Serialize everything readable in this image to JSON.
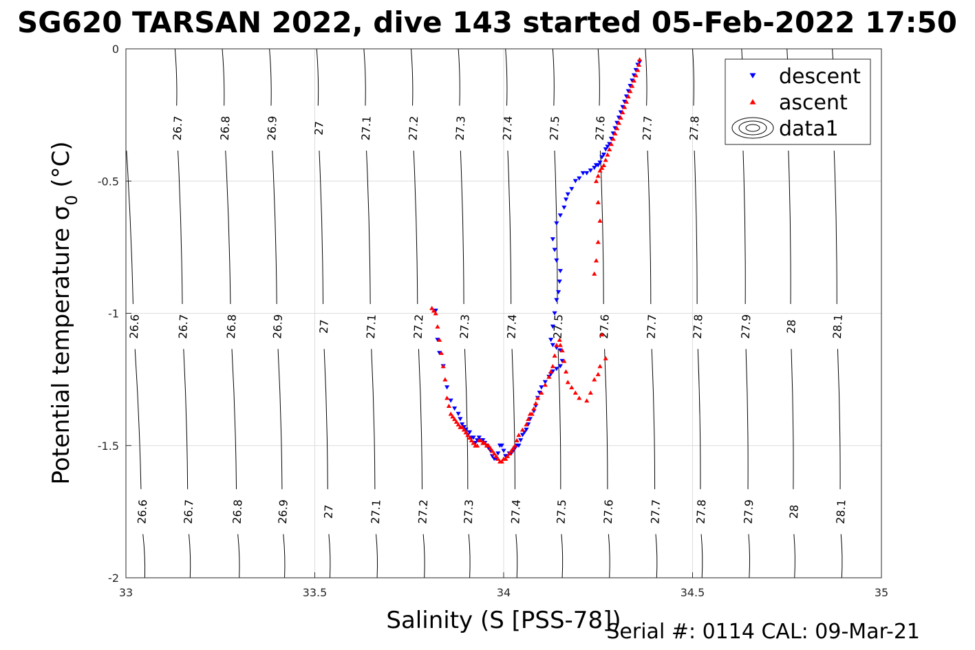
{
  "chart_data": {
    "type": "scatter",
    "title": "SG620 TARSAN 2022, dive 143 started 05-Feb-2022 17:50",
    "xlabel": "Salinity (S [PSS-78])",
    "ylabel": "Potential temperature σ",
    "ylabel_sub": "0",
    "ylabel_unit": " (°C)",
    "footer": "Serial #: 0114  CAL: 09-Mar-21",
    "xlim": [
      33,
      35
    ],
    "ylim": [
      -2,
      0
    ],
    "xticks": [
      33,
      33.5,
      34,
      34.5,
      35
    ],
    "xtick_labels": [
      "33",
      "33.5",
      "34",
      "34.5",
      "35"
    ],
    "yticks": [
      0,
      -0.5,
      -1,
      -1.5,
      -2
    ],
    "ytick_labels": [
      "0",
      "-0.5",
      "-1",
      "-1.5",
      "-2"
    ],
    "grid": true,
    "legend_position": "top-right",
    "legend": [
      {
        "label": "descent",
        "marker": "triangle-down",
        "color": "#0000ff"
      },
      {
        "label": "ascent",
        "marker": "triangle-up",
        "color": "#ff0000"
      },
      {
        "label": "data1",
        "marker": "contour",
        "color": "#000000"
      }
    ],
    "contours": {
      "levels": [
        26.6,
        26.7,
        26.8,
        26.9,
        27.0,
        27.1,
        27.2,
        27.3,
        27.4,
        27.5,
        27.6,
        27.7,
        27.8,
        27.9,
        28.0,
        28.1
      ],
      "labels": [
        "26.6",
        "26.7",
        "26.8",
        "26.9",
        "27",
        "27.1",
        "27.2",
        "27.3",
        "27.4",
        "27.5",
        "27.6",
        "27.7",
        "27.8",
        "27.9",
        "28",
        "28.1"
      ],
      "x_at_top": [
        32.99,
        33.13,
        33.255,
        33.38,
        33.505,
        33.63,
        33.755,
        33.88,
        34.005,
        34.13,
        34.25,
        34.375,
        34.5,
        34.63,
        34.75,
        34.87
      ],
      "x_at_bottom": [
        33.05,
        33.17,
        33.3,
        33.42,
        33.54,
        33.665,
        33.79,
        33.91,
        34.035,
        34.155,
        34.28,
        34.405,
        34.525,
        34.65,
        34.77,
        34.895
      ],
      "label_rows_temp": [
        -1.75,
        -1.05,
        -0.3
      ]
    },
    "series": [
      {
        "name": "descent",
        "color": "#0000ff",
        "marker": "triangle-down",
        "x": [
          34.36,
          34.355,
          34.35,
          34.345,
          34.34,
          34.335,
          34.33,
          34.325,
          34.32,
          34.315,
          34.31,
          34.305,
          34.3,
          34.295,
          34.29,
          34.285,
          34.28,
          34.275,
          34.27,
          34.265,
          34.26,
          34.255,
          34.25,
          34.245,
          34.24,
          34.23,
          34.22,
          34.21,
          34.2,
          34.19,
          34.18,
          34.17,
          34.165,
          34.16,
          34.15,
          34.14,
          34.13,
          34.135,
          34.14,
          34.15,
          34.148,
          34.145,
          34.14,
          34.135,
          34.13,
          34.125,
          34.13,
          34.14,
          34.15,
          34.155,
          34.15,
          34.14,
          34.13,
          34.125,
          34.12,
          34.11,
          34.1,
          34.095,
          34.09,
          34.085,
          34.08,
          34.07,
          34.065,
          34.06,
          34.055,
          34.05,
          34.045,
          34.04,
          34.035,
          34.03,
          34.025,
          34.02,
          34.015,
          34.01,
          34.005,
          34.0,
          33.995,
          33.99,
          33.985,
          33.98,
          33.975,
          33.97,
          33.965,
          33.96,
          33.955,
          33.95,
          33.945,
          33.94,
          33.935,
          33.93,
          33.925,
          33.92,
          33.915,
          33.91,
          33.905,
          33.9,
          33.895,
          33.89,
          33.885,
          33.88,
          33.87,
          33.86,
          33.85,
          33.84,
          33.83,
          33.825,
          33.82
        ],
        "y": [
          -0.05,
          -0.06,
          -0.08,
          -0.1,
          -0.12,
          -0.14,
          -0.16,
          -0.18,
          -0.2,
          -0.22,
          -0.24,
          -0.26,
          -0.28,
          -0.3,
          -0.32,
          -0.34,
          -0.36,
          -0.37,
          -0.38,
          -0.4,
          -0.41,
          -0.43,
          -0.44,
          -0.44,
          -0.45,
          -0.46,
          -0.47,
          -0.47,
          -0.49,
          -0.5,
          -0.53,
          -0.55,
          -0.57,
          -0.6,
          -0.63,
          -0.66,
          -0.72,
          -0.76,
          -0.8,
          -0.84,
          -0.88,
          -0.92,
          -0.95,
          -1.0,
          -1.05,
          -1.1,
          -1.12,
          -1.13,
          -1.14,
          -1.18,
          -1.2,
          -1.21,
          -1.22,
          -1.23,
          -1.24,
          -1.26,
          -1.28,
          -1.3,
          -1.32,
          -1.35,
          -1.37,
          -1.4,
          -1.42,
          -1.44,
          -1.45,
          -1.46,
          -1.48,
          -1.5,
          -1.5,
          -1.51,
          -1.52,
          -1.53,
          -1.53,
          -1.54,
          -1.54,
          -1.52,
          -1.5,
          -1.5,
          -1.53,
          -1.55,
          -1.55,
          -1.54,
          -1.52,
          -1.51,
          -1.5,
          -1.49,
          -1.48,
          -1.48,
          -1.47,
          -1.48,
          -1.49,
          -1.47,
          -1.47,
          -1.45,
          -1.46,
          -1.44,
          -1.43,
          -1.42,
          -1.4,
          -1.38,
          -1.36,
          -1.33,
          -1.28,
          -1.2,
          -1.15,
          -1.1,
          -0.99
        ]
      },
      {
        "name": "ascent",
        "color": "#ff0000",
        "marker": "triangle-up",
        "x": [
          34.36,
          34.358,
          34.355,
          34.35,
          34.345,
          34.34,
          34.335,
          34.33,
          34.325,
          34.32,
          34.315,
          34.31,
          34.305,
          34.3,
          34.295,
          34.29,
          34.285,
          34.28,
          34.275,
          34.27,
          34.265,
          34.26,
          34.255,
          34.25,
          34.245,
          34.25,
          34.255,
          34.25,
          34.245,
          34.24,
          34.26,
          34.27,
          34.255,
          34.25,
          34.24,
          34.23,
          34.22,
          34.2,
          34.19,
          34.18,
          34.17,
          34.165,
          34.16,
          34.155,
          34.15,
          34.148,
          34.14,
          34.135,
          34.13,
          34.125,
          34.12,
          34.11,
          34.1,
          34.09,
          34.085,
          34.08,
          34.075,
          34.07,
          34.065,
          34.06,
          34.05,
          34.04,
          34.035,
          34.03,
          34.025,
          34.02,
          34.015,
          34.01,
          34.005,
          34.0,
          33.995,
          33.99,
          33.985,
          33.98,
          33.975,
          33.97,
          33.965,
          33.96,
          33.955,
          33.95,
          33.945,
          33.94,
          33.935,
          33.93,
          33.925,
          33.92,
          33.915,
          33.91,
          33.905,
          33.9,
          33.895,
          33.89,
          33.885,
          33.88,
          33.875,
          33.87,
          33.865,
          33.86,
          33.855,
          33.85,
          33.845,
          33.84,
          33.835,
          33.83,
          33.825,
          33.82,
          33.815,
          33.81
        ],
        "y": [
          -0.04,
          -0.06,
          -0.08,
          -0.1,
          -0.12,
          -0.14,
          -0.16,
          -0.18,
          -0.2,
          -0.22,
          -0.24,
          -0.26,
          -0.28,
          -0.3,
          -0.32,
          -0.34,
          -0.36,
          -0.38,
          -0.4,
          -0.42,
          -0.44,
          -0.45,
          -0.46,
          -0.48,
          -0.5,
          -0.58,
          -0.65,
          -0.73,
          -0.8,
          -0.85,
          -1.08,
          -1.17,
          -1.2,
          -1.23,
          -1.25,
          -1.3,
          -1.33,
          -1.32,
          -1.3,
          -1.28,
          -1.26,
          -1.22,
          -1.18,
          -1.14,
          -1.12,
          -1.1,
          -1.12,
          -1.16,
          -1.2,
          -1.22,
          -1.24,
          -1.27,
          -1.3,
          -1.32,
          -1.34,
          -1.36,
          -1.38,
          -1.38,
          -1.4,
          -1.42,
          -1.44,
          -1.46,
          -1.48,
          -1.5,
          -1.51,
          -1.52,
          -1.53,
          -1.54,
          -1.55,
          -1.55,
          -1.56,
          -1.56,
          -1.55,
          -1.54,
          -1.53,
          -1.52,
          -1.51,
          -1.5,
          -1.5,
          -1.49,
          -1.49,
          -1.48,
          -1.48,
          -1.5,
          -1.5,
          -1.49,
          -1.48,
          -1.47,
          -1.46,
          -1.45,
          -1.44,
          -1.43,
          -1.43,
          -1.42,
          -1.41,
          -1.4,
          -1.39,
          -1.38,
          -1.35,
          -1.32,
          -1.25,
          -1.2,
          -1.15,
          -1.1,
          -1.05,
          -1.0,
          -0.99,
          -0.98
        ]
      }
    ]
  }
}
